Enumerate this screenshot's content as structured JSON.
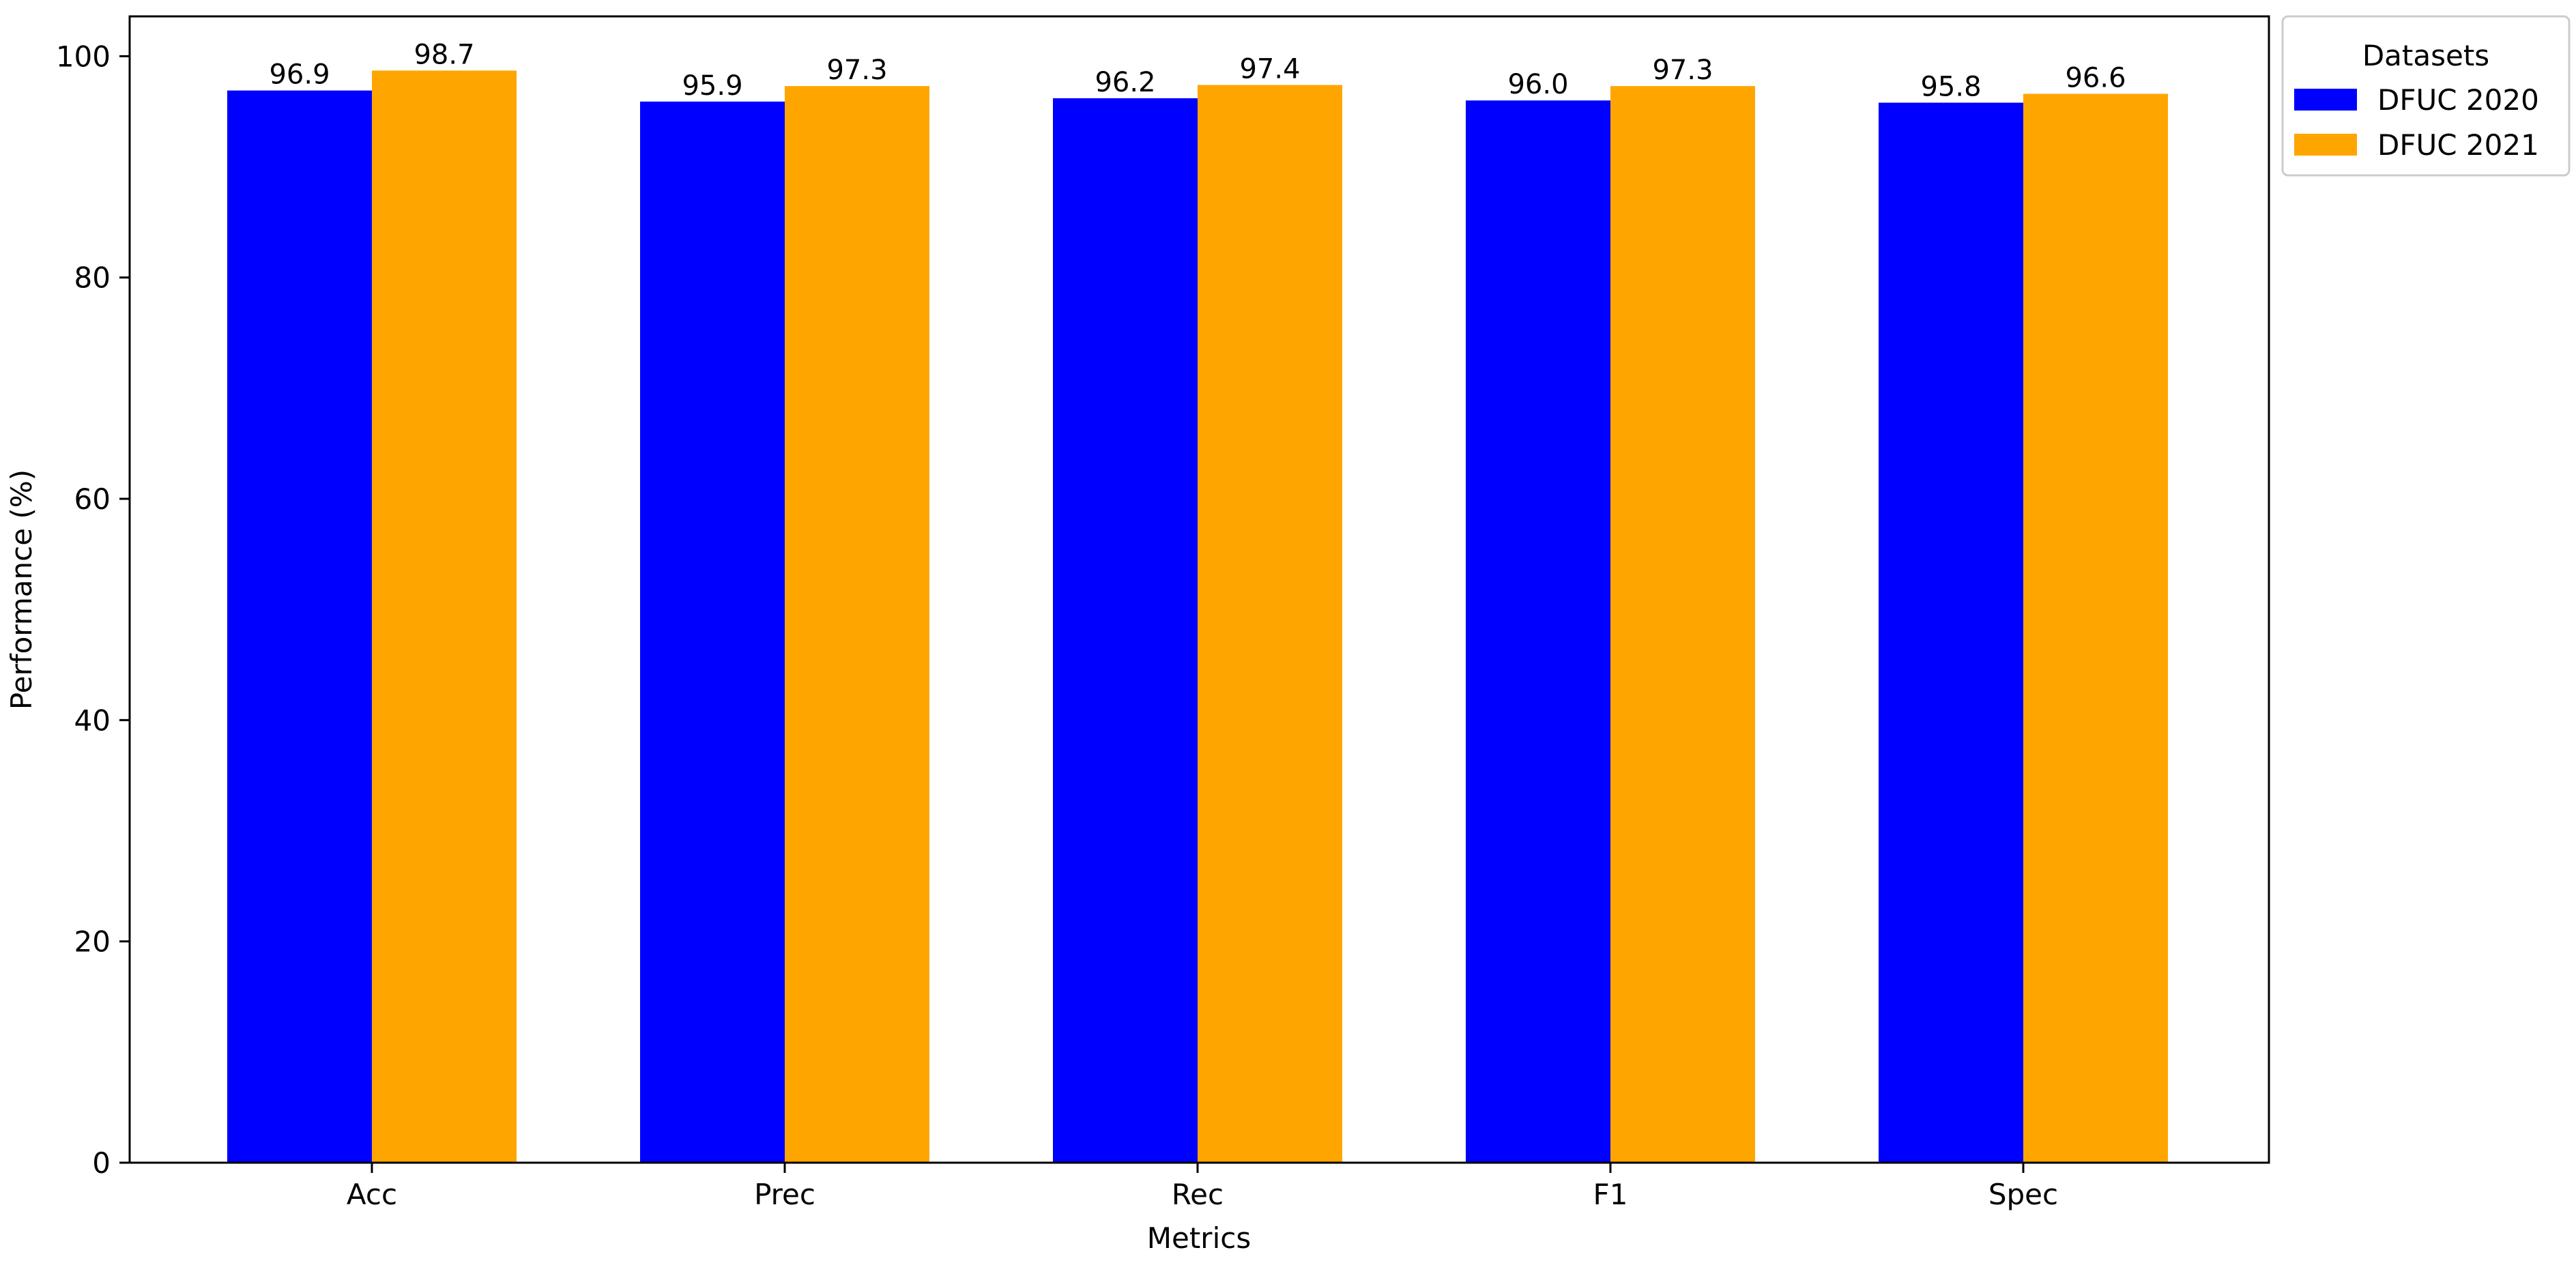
{
  "chart_data": {
    "type": "bar",
    "title": "",
    "xlabel": "Metrics",
    "ylabel": "Performance (%)",
    "categories": [
      "Acc",
      "Prec",
      "Rec",
      "F1",
      "Spec"
    ],
    "series": [
      {
        "name": "DFUC 2020",
        "color": "#0000ff",
        "values": [
          96.9,
          95.9,
          96.2,
          96.0,
          95.8
        ],
        "labels": [
          "96.9",
          "95.9",
          "96.2",
          "96.0",
          "95.8"
        ]
      },
      {
        "name": "DFUC 2021",
        "color": "#ffa500",
        "values": [
          98.7,
          97.3,
          97.4,
          97.3,
          96.6
        ],
        "labels": [
          "98.7",
          "97.3",
          "97.4",
          "97.3",
          "96.6"
        ]
      }
    ],
    "ylim": [
      0,
      103.6
    ],
    "yticks": [
      0,
      20,
      40,
      60,
      80,
      100
    ],
    "ytick_labels": [
      "0",
      "20",
      "40",
      "60",
      "80",
      "100"
    ],
    "grid": false,
    "legend": {
      "title": "Datasets",
      "placement": "outside-top-right"
    }
  }
}
